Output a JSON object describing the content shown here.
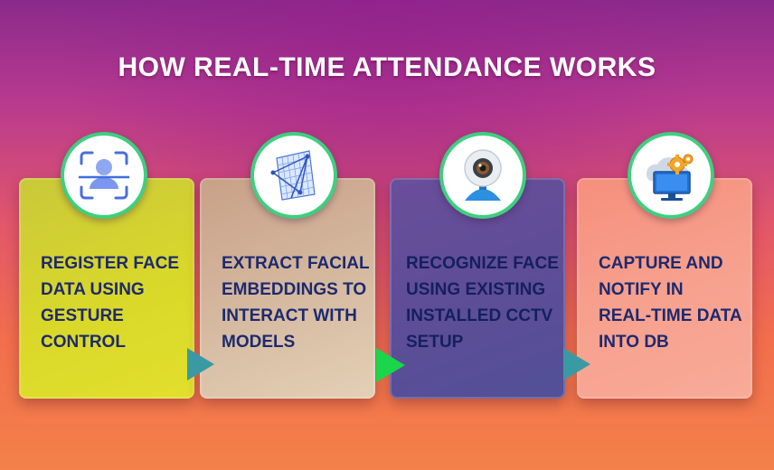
{
  "title": "HOW REAL-TIME ATTENDANCE WORKS",
  "steps": [
    {
      "icon": "face-scan-icon",
      "lines": [
        "REGISTER FACE",
        "DATA USING",
        "GESTURE",
        "CONTROL"
      ]
    },
    {
      "icon": "embedding-grid-icon",
      "lines": [
        "EXTRACT FACIAL",
        "EMBEDDINGS TO",
        "INTERACT WITH",
        "MODELS"
      ]
    },
    {
      "icon": "webcam-icon",
      "lines": [
        "RECOGNIZE FACE",
        "USING EXISTING",
        "INSTALLED CCTV",
        "SETUP"
      ]
    },
    {
      "icon": "cloud-gear-monitor-icon",
      "lines": [
        "CAPTURE AND",
        "NOTIFY IN",
        "REAL-TIME DATA",
        "INTO DB"
      ]
    }
  ],
  "colors": {
    "text": "#1d2a6e",
    "ring": "#3ecf7f",
    "arrow_teal": "#3a9aa4",
    "arrow_green": "#19d64a"
  }
}
